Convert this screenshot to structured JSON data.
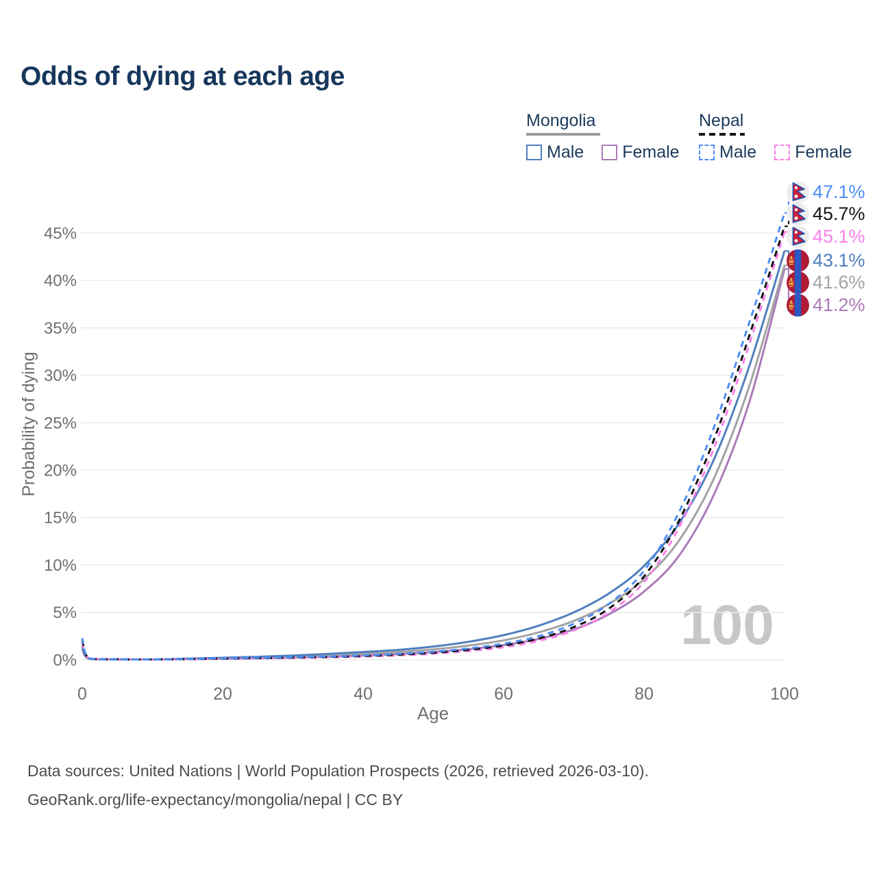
{
  "title": "Odds of dying at each age",
  "watermark": "100",
  "legend": {
    "groups": [
      {
        "label": "Mongolia",
        "style": "solid",
        "underline_color": "#9b9b9b",
        "items": [
          {
            "label": "Male",
            "color": "#4f7fbe"
          },
          {
            "label": "Female",
            "color": "#ab7bb9"
          }
        ]
      },
      {
        "label": "Nepal",
        "style": "dashed",
        "underline_color": "#141414",
        "items": [
          {
            "label": "Male",
            "color": "#4d8df5"
          },
          {
            "label": "Female",
            "color": "#fb80ea"
          }
        ]
      }
    ]
  },
  "footer": {
    "line1": "Data sources: United Nations | World Population Prospects (2026, retrieved 2026-03-10).",
    "line2": "GeoRank.org/life-expectancy/mongolia/nepal | CC BY"
  },
  "chart_data": {
    "type": "line",
    "title": "Odds of dying at each age",
    "xlabel": "Age",
    "ylabel": "Probability of dying",
    "xlim": [
      0,
      100
    ],
    "ylim_percent": [
      0,
      47.5
    ],
    "grid": "horizontal",
    "legend_position": "top-right",
    "x": [
      0,
      1,
      5,
      10,
      15,
      20,
      25,
      30,
      35,
      40,
      45,
      50,
      55,
      60,
      65,
      70,
      75,
      80,
      85,
      90,
      95,
      100
    ],
    "series": [
      {
        "name": "Mongolia Female",
        "country": "Mongolia",
        "sex": "Female",
        "style": "solid",
        "color": "#ab7bb9",
        "flag": "mongolia",
        "end_label": "41.2%",
        "values": [
          1.1,
          0.1,
          0.04,
          0.03,
          0.07,
          0.11,
          0.16,
          0.23,
          0.32,
          0.44,
          0.6,
          0.82,
          1.12,
          1.55,
          2.2,
          3.2,
          4.8,
          7.2,
          11.0,
          17.5,
          27.2,
          41.2
        ]
      },
      {
        "name": "Mongolia",
        "country": "Mongolia",
        "sex": "Both",
        "style": "solid",
        "color": "#a3a3a3",
        "flag": "mongolia",
        "end_label": "41.6%",
        "values": [
          1.25,
          0.11,
          0.04,
          0.035,
          0.1,
          0.17,
          0.25,
          0.35,
          0.48,
          0.63,
          0.82,
          1.1,
          1.5,
          2.05,
          2.9,
          4.1,
          5.9,
          8.5,
          12.6,
          19.2,
          28.9,
          41.6
        ]
      },
      {
        "name": "Mongolia Male",
        "country": "Mongolia",
        "sex": "Male",
        "style": "solid",
        "color": "#4f7fbe",
        "flag": "mongolia",
        "end_label": "43.1%",
        "values": [
          1.4,
          0.12,
          0.05,
          0.04,
          0.12,
          0.22,
          0.32,
          0.45,
          0.62,
          0.82,
          1.05,
          1.4,
          1.9,
          2.6,
          3.6,
          5.0,
          7.0,
          9.9,
          14.4,
          21.2,
          31.0,
          43.1
        ]
      },
      {
        "name": "Nepal Female",
        "country": "Nepal",
        "sex": "Female",
        "style": "dashed",
        "color": "#fb80ea",
        "flag": "nepal",
        "end_label": "45.1%",
        "values": [
          1.9,
          0.13,
          0.04,
          0.03,
          0.07,
          0.11,
          0.15,
          0.19,
          0.26,
          0.34,
          0.46,
          0.64,
          0.92,
          1.32,
          2.0,
          3.1,
          5.0,
          8.2,
          14.0,
          22.4,
          33.3,
          45.1
        ]
      },
      {
        "name": "Nepal",
        "country": "Nepal",
        "sex": "Both",
        "style": "dashed",
        "color": "#141414",
        "flag": "nepal",
        "end_label": "45.7%",
        "values": [
          2.1,
          0.14,
          0.05,
          0.04,
          0.08,
          0.13,
          0.18,
          0.23,
          0.3,
          0.4,
          0.54,
          0.74,
          1.05,
          1.5,
          2.25,
          3.45,
          5.4,
          8.8,
          14.7,
          23.3,
          34.2,
          45.7
        ]
      },
      {
        "name": "Nepal Male",
        "country": "Nepal",
        "sex": "Male",
        "style": "dashed",
        "color": "#4d8df5",
        "flag": "nepal",
        "end_label": "47.1%",
        "values": [
          2.3,
          0.15,
          0.05,
          0.04,
          0.1,
          0.16,
          0.21,
          0.27,
          0.35,
          0.46,
          0.62,
          0.85,
          1.2,
          1.7,
          2.5,
          3.8,
          5.9,
          9.4,
          15.6,
          24.6,
          35.6,
          47.1
        ]
      }
    ],
    "yticks": [
      {
        "value": 0,
        "label": "0%"
      },
      {
        "value": 5,
        "label": "5%"
      },
      {
        "value": 10,
        "label": "10%"
      },
      {
        "value": 15,
        "label": "15%"
      },
      {
        "value": 20,
        "label": "20%"
      },
      {
        "value": 25,
        "label": "25%"
      },
      {
        "value": 30,
        "label": "30%"
      },
      {
        "value": 35,
        "label": "35%"
      },
      {
        "value": 40,
        "label": "40%"
      },
      {
        "value": 45,
        "label": "45%"
      }
    ],
    "xticks": [
      {
        "value": 0,
        "label": "0"
      },
      {
        "value": 20,
        "label": "20"
      },
      {
        "value": 40,
        "label": "40"
      },
      {
        "value": 60,
        "label": "60"
      },
      {
        "value": 80,
        "label": "80"
      },
      {
        "value": 100,
        "label": "100"
      }
    ]
  }
}
